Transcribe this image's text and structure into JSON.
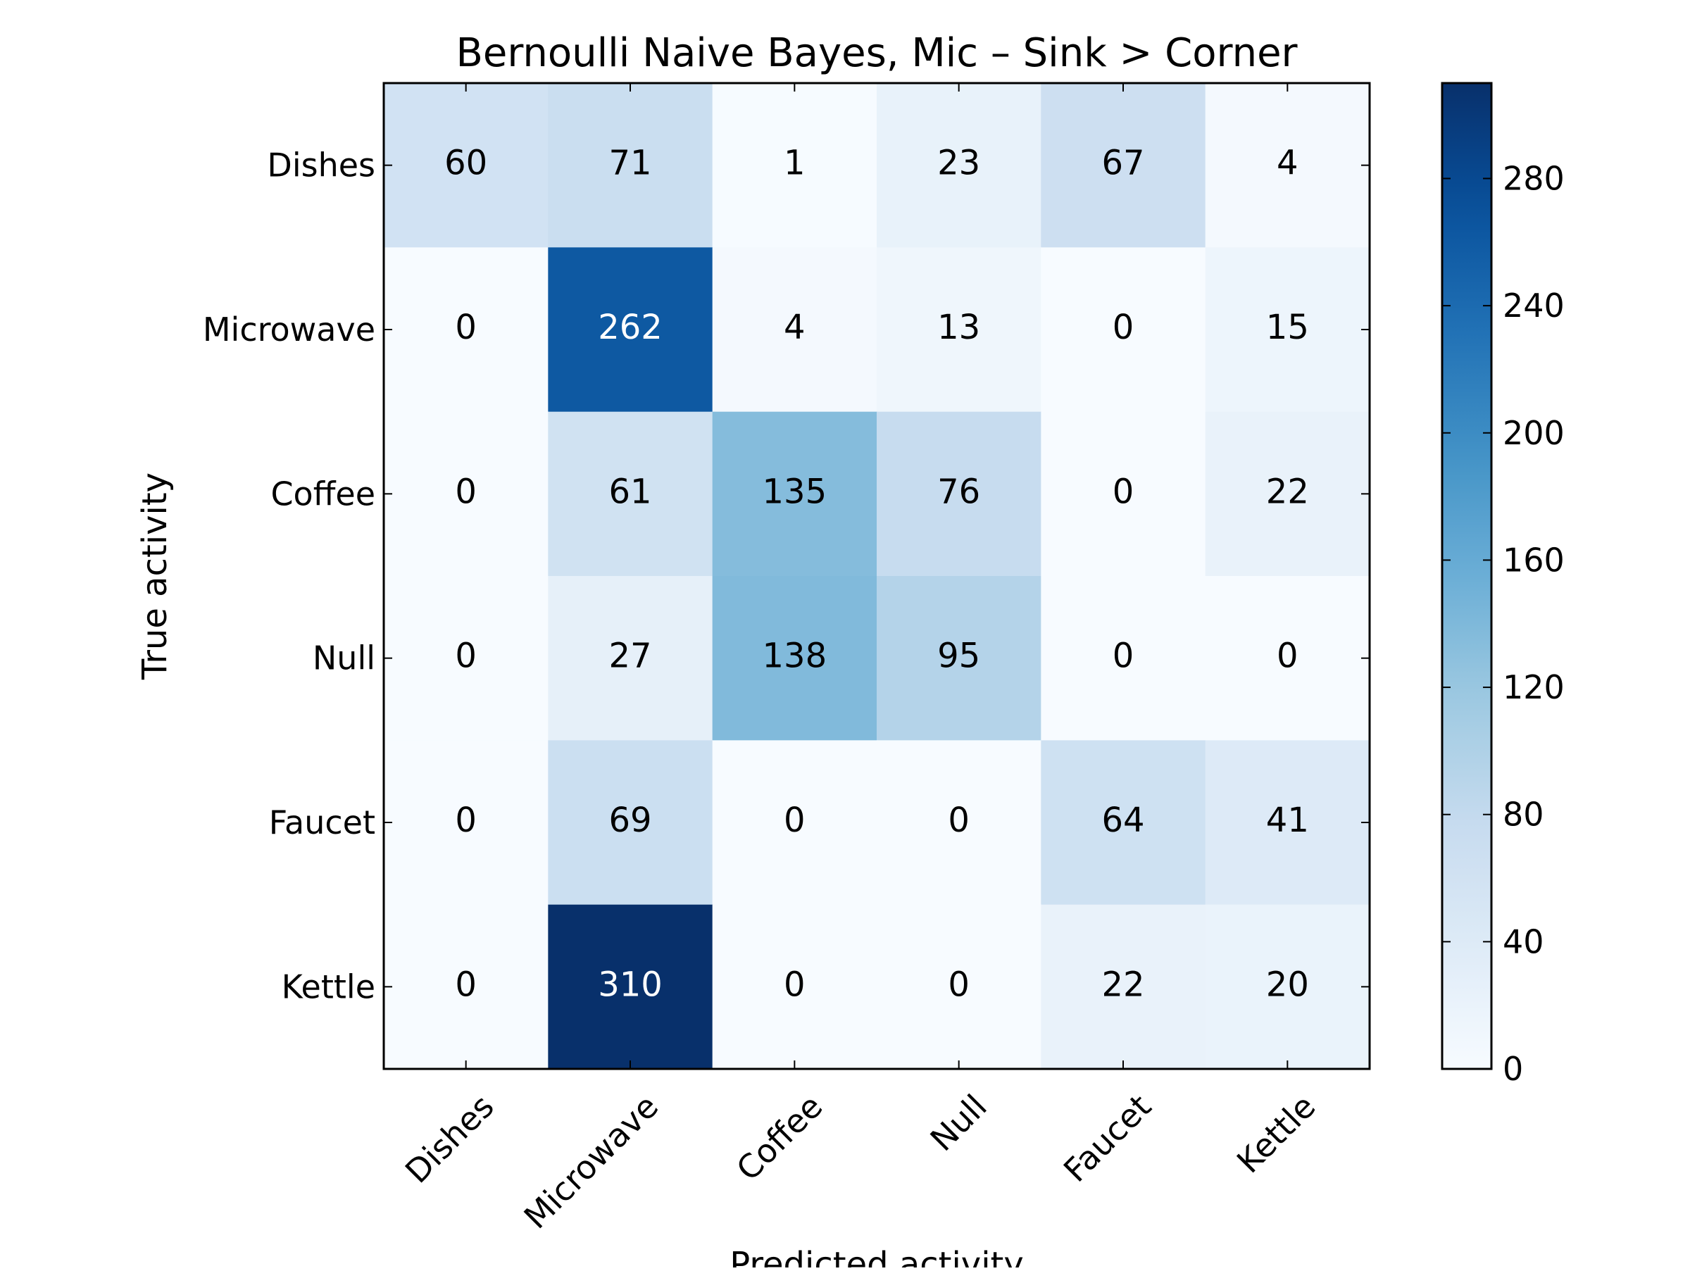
{
  "chart_data": {
    "type": "heatmap",
    "title": "Bernoulli Naive Bayes, Mic – Sink > Corner",
    "xlabel": "Predicted activity",
    "ylabel": "True activity",
    "x_categories": [
      "Dishes",
      "Microwave",
      "Coffee",
      "Null",
      "Faucet",
      "Kettle"
    ],
    "y_categories": [
      "Dishes",
      "Microwave",
      "Coffee",
      "Null",
      "Faucet",
      "Kettle"
    ],
    "values": [
      [
        60,
        71,
        1,
        23,
        67,
        4
      ],
      [
        0,
        262,
        4,
        13,
        0,
        15
      ],
      [
        0,
        61,
        135,
        76,
        0,
        22
      ],
      [
        0,
        27,
        138,
        95,
        0,
        0
      ],
      [
        0,
        69,
        0,
        0,
        64,
        41
      ],
      [
        0,
        310,
        0,
        0,
        22,
        20
      ]
    ],
    "colormap": "Blues",
    "color_range": [
      0,
      310
    ],
    "colorbar_ticks": [
      0,
      40,
      80,
      120,
      160,
      200,
      240,
      280
    ],
    "colors": {
      "low": "#f7fbff",
      "high": "#08306b",
      "text_dark": "#000000",
      "text_light": "#ffffff"
    }
  }
}
